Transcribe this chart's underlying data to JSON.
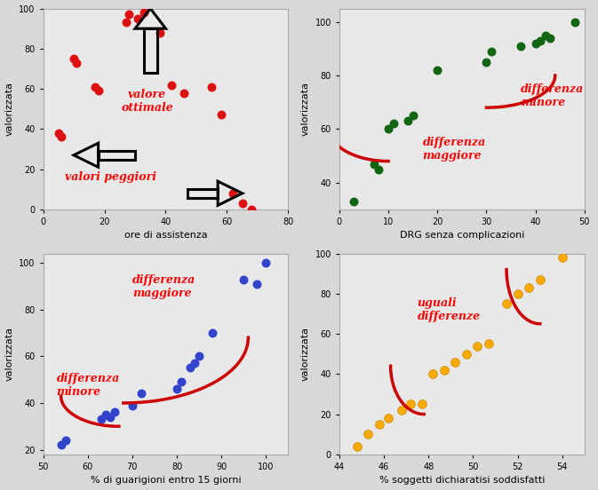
{
  "bg_color": "#e8e8e8",
  "dot_color_tl": "#dd1111",
  "dot_color_tr": "#116611",
  "dot_color_bl": "#3344cc",
  "dot_color_br": "#ffaa00",
  "red_curve_color": "#cc0000",
  "tl_xlabel": "ore di assistenza",
  "tl_ylabel": "valorizzata",
  "tl_xlim": [
    0,
    80
  ],
  "tl_ylim": [
    0,
    100
  ],
  "tl_xticks": [
    0,
    20,
    40,
    60,
    80
  ],
  "tl_yticks": [
    0,
    20,
    40,
    60,
    80,
    100
  ],
  "tl_points_x": [
    5,
    6,
    10,
    11,
    17,
    18,
    27,
    28,
    31,
    33,
    38,
    42,
    46,
    55,
    58,
    62,
    65,
    68
  ],
  "tl_points_y": [
    38,
    36,
    75,
    73,
    61,
    59,
    93,
    97,
    95,
    98,
    88,
    62,
    58,
    61,
    47,
    8,
    3,
    0
  ],
  "tr_xlabel": "DRG senza complicazioni",
  "tr_ylabel": "valorizzata",
  "tr_xlim": [
    0,
    50
  ],
  "tr_ylim": [
    30,
    105
  ],
  "tr_xticks": [
    0,
    10,
    20,
    30,
    40,
    50
  ],
  "tr_yticks": [
    40,
    60,
    80,
    100
  ],
  "tr_points_x": [
    3,
    7,
    8,
    10,
    11,
    14,
    15,
    20,
    30,
    31,
    37,
    40,
    41,
    42,
    43,
    48
  ],
  "tr_points_y": [
    33,
    47,
    45,
    60,
    62,
    63,
    65,
    82,
    85,
    89,
    91,
    92,
    93,
    95,
    94,
    100
  ],
  "bl_xlabel": "% di guarigioni entro 15 giorni",
  "bl_ylabel": "valorizzata",
  "bl_xlim": [
    50,
    105
  ],
  "bl_ylim": [
    18,
    104
  ],
  "bl_xticks": [
    50,
    60,
    70,
    80,
    90,
    100
  ],
  "bl_yticks": [
    20,
    40,
    60,
    80,
    100
  ],
  "bl_points_x": [
    54,
    55,
    63,
    64,
    65,
    66,
    70,
    72,
    80,
    81,
    83,
    84,
    85,
    88,
    95,
    98,
    100
  ],
  "bl_points_y": [
    22,
    24,
    33,
    35,
    34,
    36,
    39,
    44,
    46,
    49,
    55,
    57,
    60,
    70,
    93,
    91,
    100
  ],
  "br_xlabel": "% soggetti dichiaratisi soddisfatti",
  "br_ylabel": "valorizzata",
  "br_xlim": [
    44,
    55
  ],
  "br_ylim": [
    0,
    100
  ],
  "br_xticks": [
    44,
    46,
    48,
    50,
    52,
    54
  ],
  "br_yticks": [
    0,
    20,
    40,
    60,
    80,
    100
  ],
  "br_points_x": [
    44.8,
    45.3,
    45.8,
    46.2,
    46.8,
    47.2,
    47.7,
    48.2,
    48.7,
    49.2,
    49.7,
    50.2,
    50.7,
    51.5,
    52.0,
    52.5,
    53.0,
    54.0
  ],
  "br_points_y": [
    4,
    10,
    15,
    18,
    22,
    25,
    25,
    40,
    42,
    46,
    50,
    54,
    55,
    75,
    80,
    83,
    87,
    98
  ]
}
